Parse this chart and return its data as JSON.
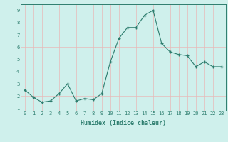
{
  "x": [
    0,
    1,
    2,
    3,
    4,
    5,
    6,
    7,
    8,
    9,
    10,
    11,
    12,
    13,
    14,
    15,
    16,
    17,
    18,
    19,
    20,
    21,
    22,
    23
  ],
  "y": [
    2.5,
    1.9,
    1.5,
    1.6,
    2.2,
    3.0,
    1.6,
    1.8,
    1.7,
    2.2,
    4.8,
    6.7,
    7.6,
    7.6,
    8.6,
    9.0,
    6.3,
    5.6,
    5.4,
    5.3,
    4.4,
    4.8,
    4.4,
    4.4
  ],
  "xlabel": "Humidex (Indice chaleur)",
  "line_color": "#2d7d6e",
  "marker_color": "#2d7d6e",
  "bg_color": "#cff0ec",
  "grid_color": "#e8b8b8",
  "xlim": [
    -0.5,
    23.5
  ],
  "ylim": [
    0.8,
    9.5
  ],
  "yticks": [
    1,
    2,
    3,
    4,
    5,
    6,
    7,
    8,
    9
  ],
  "xticks": [
    0,
    1,
    2,
    3,
    4,
    5,
    6,
    7,
    8,
    9,
    10,
    11,
    12,
    13,
    14,
    15,
    16,
    17,
    18,
    19,
    20,
    21,
    22,
    23
  ],
  "tick_fontsize": 5.0,
  "xlabel_fontsize": 6.0
}
